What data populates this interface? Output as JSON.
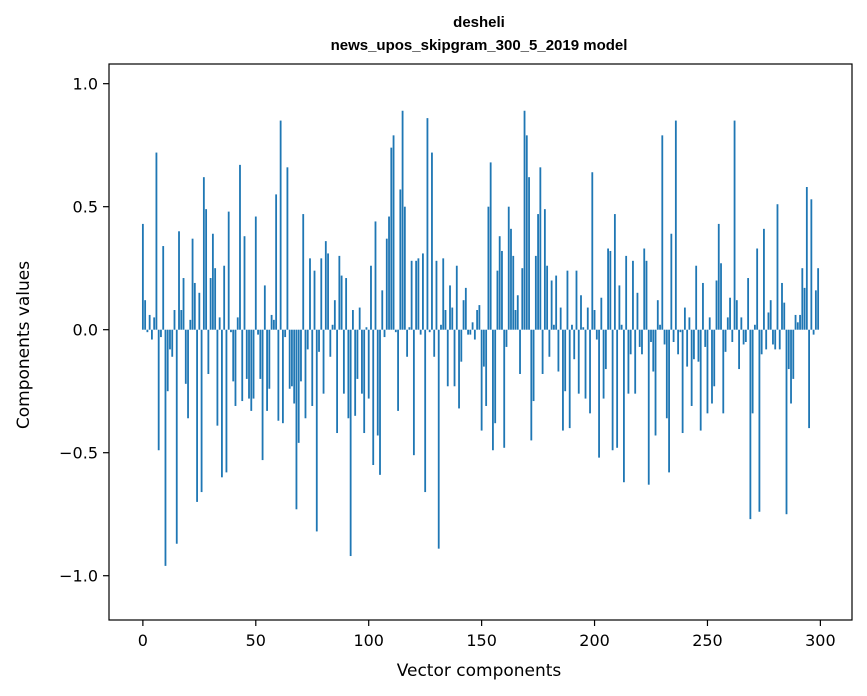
{
  "chart_data": {
    "type": "bar",
    "title": "desheli",
    "subtitle": "news_upos_skipgram_300_5_2019 model",
    "xlabel": "Vector components",
    "ylabel": "Components values",
    "xlim": [
      -15,
      314
    ],
    "ylim": [
      -1.18,
      1.08
    ],
    "xticks": [
      0,
      50,
      100,
      150,
      200,
      250,
      300
    ],
    "xtick_labels": [
      "0",
      "50",
      "100",
      "150",
      "200",
      "250",
      "300"
    ],
    "yticks": [
      1.0,
      0.5,
      0.0,
      -0.5,
      -1.0
    ],
    "ytick_labels": [
      "1.0",
      "0.5",
      "0.0",
      "−0.5",
      "−1.0"
    ],
    "bar_color": "#1f77b4",
    "values": [
      0.43,
      0.12,
      -0.01,
      0.06,
      -0.04,
      0.05,
      0.72,
      -0.49,
      -0.03,
      0.34,
      -0.96,
      -0.25,
      -0.08,
      -0.11,
      0.08,
      -0.87,
      0.4,
      0.08,
      0.21,
      -0.22,
      -0.36,
      0.04,
      0.37,
      0.19,
      -0.7,
      0.15,
      -0.66,
      0.62,
      0.49,
      -0.18,
      0.21,
      0.39,
      0.25,
      -0.39,
      0.05,
      -0.6,
      0.26,
      -0.58,
      0.48,
      -0.01,
      -0.21,
      -0.31,
      0.05,
      0.67,
      -0.29,
      0.38,
      -0.2,
      -0.28,
      -0.33,
      -0.28,
      0.46,
      -0.02,
      -0.2,
      -0.53,
      0.18,
      -0.33,
      -0.24,
      0.06,
      0.04,
      0.55,
      -0.37,
      0.85,
      -0.38,
      -0.03,
      0.66,
      -0.24,
      -0.23,
      -0.3,
      -0.73,
      -0.46,
      -0.21,
      0.47,
      -0.36,
      -0.08,
      0.29,
      -0.31,
      0.24,
      -0.82,
      -0.09,
      0.29,
      -0.26,
      0.36,
      0.31,
      -0.11,
      0.02,
      0.12,
      -0.42,
      0.3,
      0.22,
      -0.26,
      0.21,
      -0.36,
      -0.92,
      0.08,
      -0.35,
      -0.2,
      0.09,
      -0.26,
      -0.42,
      0.01,
      -0.28,
      0.26,
      -0.55,
      0.44,
      -0.43,
      -0.59,
      0.16,
      -0.03,
      0.37,
      0.46,
      0.74,
      0.79,
      -0.01,
      -0.33,
      0.57,
      0.89,
      0.5,
      -0.11,
      0.01,
      0.28,
      -0.51,
      0.28,
      0.29,
      -0.02,
      0.31,
      -0.66,
      0.86,
      -0.01,
      0.72,
      -0.11,
      0.28,
      -0.89,
      0.02,
      0.29,
      0.08,
      -0.23,
      0.18,
      0.09,
      -0.23,
      0.26,
      -0.32,
      -0.13,
      0.12,
      0.17,
      -0.02,
      -0.02,
      0.03,
      -0.04,
      0.08,
      0.1,
      -0.41,
      -0.15,
      -0.31,
      0.5,
      0.68,
      -0.49,
      -0.38,
      0.24,
      0.38,
      0.32,
      -0.48,
      -0.07,
      0.5,
      0.41,
      0.3,
      0.08,
      0.14,
      -0.18,
      0.25,
      0.89,
      0.79,
      0.62,
      -0.45,
      -0.29,
      0.3,
      0.47,
      0.66,
      -0.18,
      0.49,
      0.26,
      -0.11,
      0.2,
      0.02,
      0.22,
      -0.17,
      0.09,
      -0.41,
      -0.25,
      0.24,
      -0.4,
      0.02,
      -0.12,
      0.24,
      -0.26,
      0.14,
      0.01,
      -0.28,
      0.09,
      -0.34,
      0.64,
      0.08,
      -0.04,
      -0.52,
      0.13,
      -0.28,
      -0.16,
      0.33,
      0.32,
      -0.49,
      0.47,
      -0.48,
      0.18,
      0.02,
      -0.62,
      0.3,
      -0.26,
      -0.1,
      0.28,
      -0.26,
      0.15,
      -0.07,
      -0.1,
      0.33,
      0.28,
      -0.63,
      -0.05,
      -0.17,
      -0.43,
      0.12,
      0.02,
      0.79,
      -0.06,
      -0.36,
      -0.58,
      0.39,
      -0.05,
      0.85,
      -0.1,
      -0.01,
      -0.42,
      0.09,
      -0.15,
      0.05,
      -0.31,
      -0.12,
      0.26,
      -0.13,
      -0.41,
      0.19,
      -0.07,
      -0.34,
      0.05,
      -0.3,
      -0.23,
      0.2,
      0.43,
      0.27,
      -0.34,
      -0.09,
      0.05,
      0.13,
      -0.05,
      0.85,
      0.12,
      -0.16,
      0.05,
      -0.06,
      -0.05,
      0.21,
      -0.77,
      -0.34,
      0.02,
      0.33,
      -0.74,
      -0.1,
      0.41,
      -0.08,
      0.07,
      0.12,
      -0.06,
      -0.08,
      0.51,
      -0.08,
      0.19,
      0.11,
      -0.75,
      -0.16,
      -0.3,
      -0.2,
      0.06,
      0.03,
      0.06,
      0.25,
      0.17,
      0.58,
      -0.4,
      0.53,
      -0.02,
      0.16,
      0.25
    ]
  }
}
